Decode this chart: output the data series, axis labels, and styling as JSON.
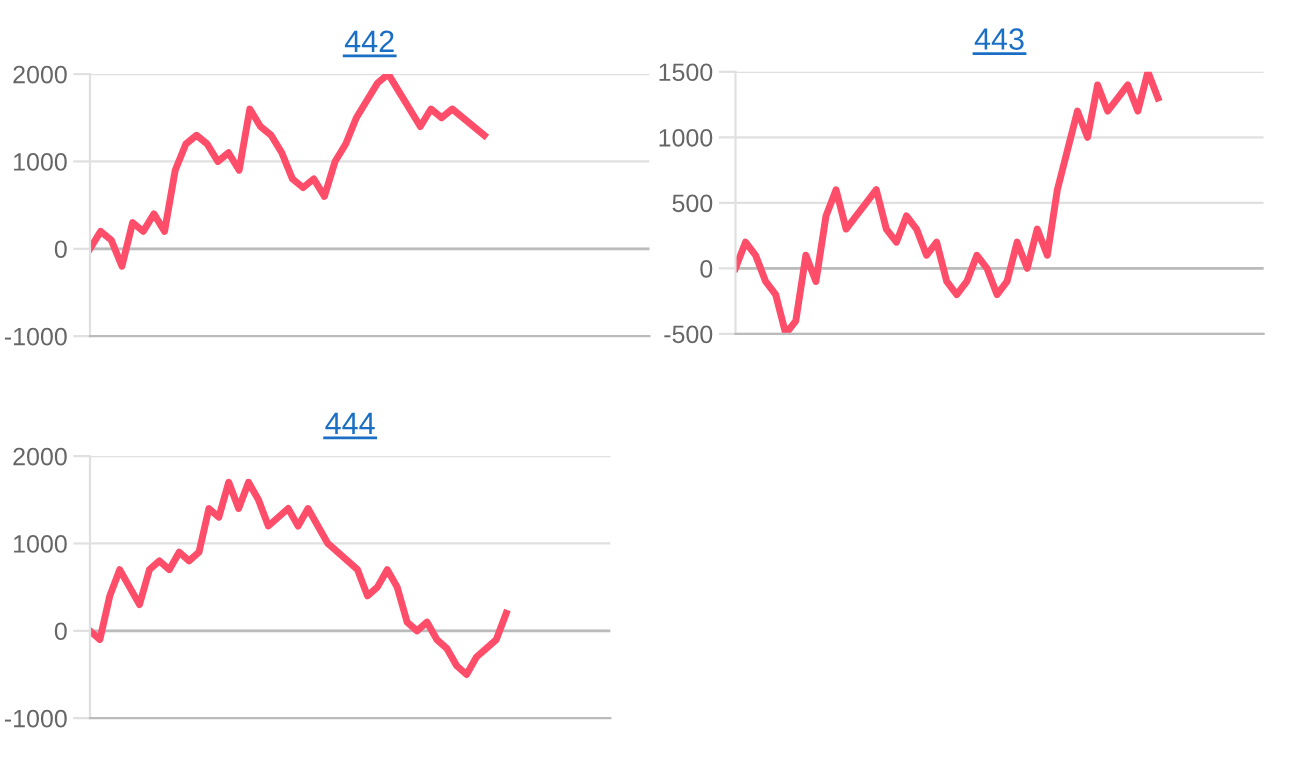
{
  "chart_data": [
    {
      "type": "line",
      "title": "442",
      "categories": [
        null,
        null,
        null,
        null,
        null,
        null,
        null,
        null,
        null,
        null,
        null,
        null,
        null,
        null,
        null,
        null,
        null,
        null,
        null,
        null,
        null,
        null,
        null,
        null,
        null,
        null,
        null,
        null,
        null,
        null,
        null,
        null,
        null,
        null,
        null,
        null,
        null,
        null,
        null,
        null,
        null,
        null,
        null,
        null,
        null,
        null,
        null,
        null,
        null,
        null,
        null,
        null,
        null
      ],
      "series": [
        {
          "color": "#ff4d6a",
          "values": [
            0,
            200,
            100,
            -200,
            300,
            200,
            400,
            200,
            900,
            1200,
            1300,
            1200,
            1000,
            1100,
            900,
            1600,
            1400,
            1300,
            1100,
            800,
            700,
            800,
            600,
            1000,
            1200,
            1500,
            1700,
            1900,
            2000,
            1800,
            1600,
            1400,
            1600,
            1500,
            1600,
            1500,
            1400,
            1300,
            null,
            null,
            null,
            null,
            null,
            null,
            null,
            null,
            null,
            null,
            null,
            null,
            null,
            null,
            null
          ]
        }
      ],
      "ylim": [
        -1000,
        2000
      ],
      "yticks": [
        -1000,
        0,
        1000,
        2000
      ],
      "grid": "y",
      "tick_labels": "y",
      "marker": "none",
      "line_style": "solid"
    },
    {
      "type": "line",
      "title": "443",
      "categories": [
        null,
        null,
        null,
        null,
        null,
        null,
        null,
        null,
        null,
        null,
        null,
        null,
        null,
        null,
        null,
        null,
        null,
        null,
        null,
        null,
        null,
        null,
        null,
        null,
        null,
        null,
        null,
        null,
        null,
        null,
        null,
        null,
        null,
        null,
        null,
        null,
        null,
        null,
        null,
        null,
        null,
        null,
        null,
        null,
        null,
        null,
        null,
        null,
        null,
        null,
        null,
        null,
        null
      ],
      "series": [
        {
          "color": "#ff4d6a",
          "values": [
            0,
            200,
            100,
            -100,
            -200,
            -500,
            -400,
            100,
            -100,
            400,
            600,
            300,
            400,
            500,
            600,
            300,
            200,
            400,
            300,
            100,
            200,
            -100,
            -200,
            -100,
            100,
            0,
            -200,
            -100,
            200,
            0,
            300,
            100,
            600,
            900,
            1200,
            1000,
            1400,
            1200,
            1300,
            1400,
            1200,
            1500,
            1300,
            null,
            null,
            null,
            null,
            null,
            null,
            null,
            null,
            null,
            null
          ]
        }
      ],
      "ylim": [
        -500,
        1500
      ],
      "yticks": [
        -500,
        0,
        500,
        1000,
        1500
      ],
      "grid": "y",
      "tick_labels": "y",
      "marker": "none",
      "line_style": "solid"
    },
    {
      "type": "line",
      "title": "444",
      "categories": [
        null,
        null,
        null,
        null,
        null,
        null,
        null,
        null,
        null,
        null,
        null,
        null,
        null,
        null,
        null,
        null,
        null,
        null,
        null,
        null,
        null,
        null,
        null,
        null,
        null,
        null,
        null,
        null,
        null,
        null,
        null,
        null,
        null,
        null,
        null,
        null,
        null,
        null,
        null,
        null,
        null,
        null,
        null,
        null,
        null,
        null,
        null,
        null,
        null,
        null,
        null,
        null,
        null
      ],
      "series": [
        {
          "color": "#ff4d6a",
          "values": [
            0,
            -100,
            400,
            700,
            500,
            300,
            700,
            800,
            700,
            900,
            800,
            900,
            1400,
            1300,
            1700,
            1400,
            1700,
            1500,
            1200,
            1300,
            1400,
            1200,
            1400,
            1200,
            1000,
            900,
            800,
            700,
            400,
            500,
            700,
            500,
            100,
            0,
            100,
            -100,
            -200,
            -400,
            -500,
            -300,
            -200,
            -100,
            200,
            null,
            null,
            null,
            null,
            null,
            null,
            null,
            null,
            null,
            null
          ]
        }
      ],
      "ylim": [
        -1000,
        2000
      ],
      "yticks": [
        -1000,
        0,
        1000,
        2000
      ],
      "grid": "y",
      "tick_labels": "y",
      "marker": "none",
      "line_style": "solid"
    }
  ]
}
